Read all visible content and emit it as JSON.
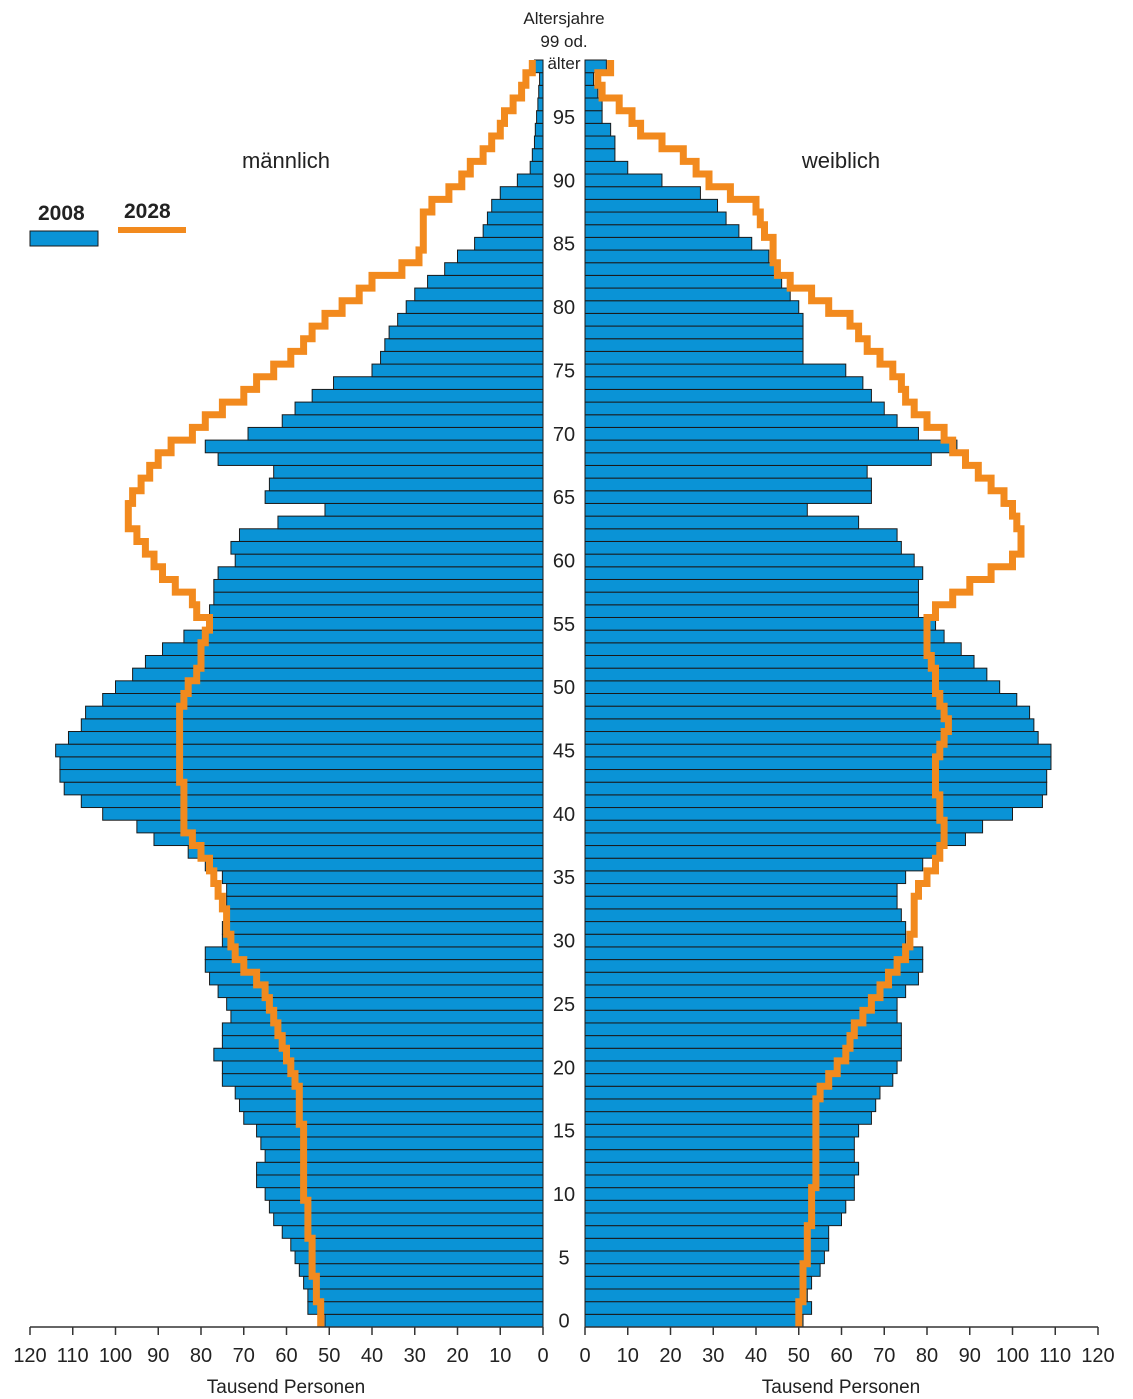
{
  "chart_data": {
    "type": "bar",
    "orientation": "population-pyramid",
    "age_header": [
      "Altersjahre",
      "99 od.",
      "älter"
    ],
    "left_label": "männlich",
    "right_label": "weiblich",
    "xlabel_left": "Tausend Personen",
    "xlabel_right": "Tausend Personen",
    "xlim": [
      0,
      120
    ],
    "x_ticks": [
      120,
      110,
      100,
      90,
      80,
      70,
      60,
      50,
      40,
      30,
      20,
      10,
      0
    ],
    "x_ticks_right": [
      0,
      10,
      20,
      30,
      40,
      50,
      60,
      70,
      80,
      90,
      100,
      110,
      120
    ],
    "age_ticks": [
      "0",
      "5",
      "10",
      "15",
      "20",
      "25",
      "30",
      "35",
      "40",
      "45",
      "50",
      "55",
      "60",
      "65",
      "70",
      "75",
      "80",
      "85",
      "90",
      "95"
    ],
    "ages": [
      0,
      1,
      2,
      3,
      4,
      5,
      6,
      7,
      8,
      9,
      10,
      11,
      12,
      13,
      14,
      15,
      16,
      17,
      18,
      19,
      20,
      21,
      22,
      23,
      24,
      25,
      26,
      27,
      28,
      29,
      30,
      31,
      32,
      33,
      34,
      35,
      36,
      37,
      38,
      39,
      40,
      41,
      42,
      43,
      44,
      45,
      46,
      47,
      48,
      49,
      50,
      51,
      52,
      53,
      54,
      55,
      56,
      57,
      58,
      59,
      60,
      61,
      62,
      63,
      64,
      65,
      66,
      67,
      68,
      69,
      70,
      71,
      72,
      73,
      74,
      75,
      76,
      77,
      78,
      79,
      80,
      81,
      82,
      83,
      84,
      85,
      86,
      87,
      88,
      89,
      90,
      91,
      92,
      93,
      94,
      95,
      96,
      97,
      98,
      99
    ],
    "legend": [
      {
        "label": "2008",
        "color": "#0a93d6",
        "style": "bar"
      },
      {
        "label": "2028",
        "color": "#f28a1e",
        "style": "line"
      }
    ],
    "series": [
      {
        "name": "2008",
        "side": "männlich",
        "values": [
          51,
          55,
          55,
          56,
          57,
          58,
          59,
          61,
          63,
          64,
          65,
          67,
          67,
          65,
          66,
          67,
          70,
          71,
          72,
          75,
          75,
          77,
          75,
          75,
          73,
          74,
          76,
          78,
          79,
          79,
          75,
          75,
          74,
          74,
          74,
          75,
          79,
          83,
          91,
          95,
          103,
          108,
          112,
          113,
          113,
          114,
          111,
          108,
          107,
          103,
          100,
          96,
          93,
          89,
          84,
          78,
          78,
          77,
          77,
          76,
          72,
          73,
          71,
          62,
          51,
          65,
          64,
          63,
          76,
          79,
          69,
          61,
          58,
          54,
          49,
          40,
          38,
          37,
          36,
          34,
          32,
          30,
          27,
          23,
          20,
          16,
          14,
          13,
          12,
          10,
          6,
          3,
          2.5,
          2,
          1.8,
          1.5,
          1.2,
          1,
          0.8,
          2
        ]
      },
      {
        "name": "2008",
        "side": "weiblich",
        "values": [
          51,
          53,
          52,
          53,
          55,
          56,
          57,
          57,
          60,
          61,
          63,
          63,
          64,
          63,
          63,
          64,
          67,
          68,
          69,
          72,
          73,
          74,
          74,
          74,
          73,
          73,
          75,
          78,
          79,
          79,
          75,
          75,
          74,
          73,
          73,
          75,
          79,
          83,
          89,
          93,
          100,
          107,
          108,
          108,
          109,
          109,
          106,
          105,
          104,
          101,
          97,
          94,
          91,
          88,
          84,
          82,
          78,
          78,
          78,
          79,
          77,
          74,
          73,
          64,
          52,
          67,
          67,
          66,
          81,
          87,
          78,
          73,
          70,
          67,
          65,
          61,
          51,
          51,
          51,
          51,
          50,
          48,
          46,
          45,
          43,
          39,
          36,
          33,
          31,
          27,
          18,
          10,
          7,
          7,
          6,
          4,
          4,
          3,
          2,
          5
        ]
      },
      {
        "name": "2028",
        "side": "männlich",
        "values": [
          52,
          52,
          53,
          53,
          54,
          54,
          54,
          55,
          55,
          55,
          56,
          56,
          56,
          56,
          56,
          56,
          57,
          57,
          57,
          58,
          59,
          60,
          61,
          62,
          63,
          64,
          65,
          67,
          70,
          72,
          73,
          74,
          74,
          75,
          76,
          77,
          78,
          80,
          82,
          84,
          84,
          84,
          84,
          85,
          85,
          85,
          85,
          85,
          85,
          84,
          83,
          81,
          80,
          80,
          79,
          78,
          81,
          82,
          86,
          89,
          91,
          93,
          95,
          97,
          97,
          96,
          94,
          92,
          90,
          87,
          82,
          79,
          75,
          70,
          67,
          63,
          59,
          56,
          54,
          51,
          47,
          43,
          40,
          33,
          29,
          28,
          28,
          28,
          26,
          22,
          19,
          17,
          14,
          12,
          10,
          9,
          7,
          5,
          4,
          2.5
        ]
      },
      {
        "name": "2028",
        "side": "weiblich",
        "values": [
          50,
          50,
          51,
          51,
          51,
          52,
          52,
          52,
          53,
          53,
          53,
          54,
          54,
          54,
          54,
          54,
          54,
          54,
          55,
          57,
          59,
          61,
          62,
          63,
          65,
          67,
          69,
          71,
          73,
          75,
          76,
          77,
          77,
          77,
          78,
          80,
          82,
          83,
          84,
          84,
          83,
          83,
          82,
          82,
          82,
          83,
          84,
          85,
          84,
          83,
          82,
          82,
          81,
          80,
          80,
          80,
          82,
          86,
          90,
          95,
          100,
          102,
          102,
          101,
          100,
          98,
          95,
          92,
          89,
          86,
          84,
          80,
          77,
          75,
          74,
          72,
          69,
          66,
          64,
          62,
          57,
          53,
          48,
          45,
          44,
          44,
          42,
          41,
          40,
          34,
          29,
          26,
          23,
          18,
          13,
          11,
          8,
          4,
          3,
          6
        ]
      }
    ]
  }
}
